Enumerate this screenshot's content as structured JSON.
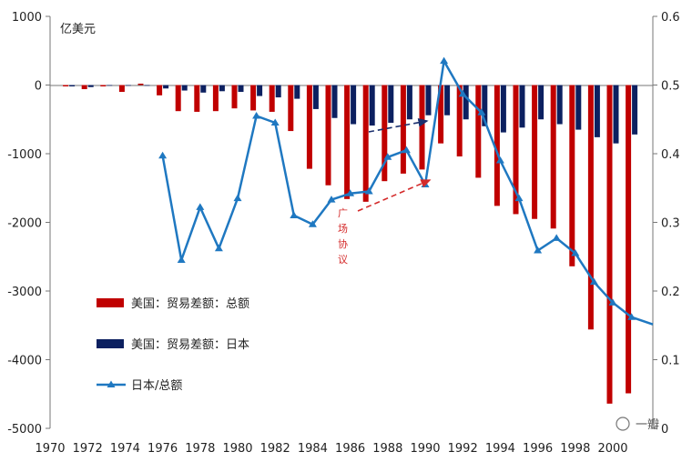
{
  "chart_data": {
    "type": "bar",
    "unit_label": "亿美元",
    "left_axis": {
      "ylim": [
        -5000,
        1000
      ],
      "ticks": [
        "1000",
        "0",
        "-1000",
        "-2000",
        "-3000",
        "-4000",
        "-5000"
      ]
    },
    "right_axis": {
      "ylim": [
        0,
        0.6
      ],
      "ticks": [
        "0.6",
        "0.5",
        "0.4",
        "0.3",
        "0.2",
        "0.1",
        "0"
      ]
    },
    "x_ticks": [
      "1970",
      "1972",
      "1974",
      "1976",
      "1978",
      "1980",
      "1982",
      "1984",
      "1986",
      "1988",
      "1990",
      "1992",
      "1994",
      "1996",
      "1998",
      "2000"
    ],
    "years": [
      1971,
      1972,
      1973,
      1974,
      1975,
      1976,
      1977,
      1978,
      1979,
      1980,
      1981,
      1982,
      1983,
      1984,
      1985,
      1986,
      1987,
      1988,
      1989,
      1990,
      1991,
      1992,
      1993,
      1994,
      1995,
      1996,
      1997,
      1998,
      1999,
      2000,
      2001
    ],
    "series": [
      {
        "name": "美国：贸易差额：总额",
        "color": "#c00000",
        "axis": "left",
        "values": [
          -20,
          -60,
          -20,
          -100,
          20,
          -150,
          -380,
          -390,
          -380,
          -340,
          -370,
          -390,
          -670,
          -1220,
          -1460,
          -1660,
          -1700,
          -1400,
          -1290,
          -1230,
          -850,
          -1040,
          -1350,
          -1760,
          -1880,
          -1950,
          -2090,
          -2640,
          -3560,
          -4640,
          -4490
        ]
      },
      {
        "name": "美国：贸易差额：日本",
        "color": "#0c2060",
        "axis": "left",
        "values": [
          -20,
          -30,
          0,
          -10,
          -10,
          -50,
          -80,
          -110,
          -90,
          -100,
          -160,
          -180,
          -200,
          -350,
          -480,
          -570,
          -590,
          -550,
          -500,
          -440,
          -440,
          -500,
          -600,
          -690,
          -620,
          -500,
          -570,
          -650,
          -760,
          -850,
          -720
        ]
      },
      {
        "name": "日本/总额",
        "color": "#1f78c1",
        "axis": "right",
        "x": [
          1976,
          1977,
          1978,
          1979,
          1980,
          1981,
          1982,
          1983,
          1984,
          1985,
          1986,
          1987,
          1988,
          1989,
          1990,
          1991,
          1992,
          1993,
          1994,
          1995,
          1996,
          1997,
          1998,
          1999,
          2000,
          2001
        ],
        "values": [
          0.397,
          0.245,
          0.322,
          0.262,
          0.335,
          0.455,
          0.445,
          0.31,
          0.297,
          0.333,
          0.342,
          0.345,
          0.395,
          0.405,
          0.355,
          0.535,
          0.487,
          0.46,
          0.39,
          0.335,
          0.259,
          0.277,
          0.255,
          0.213,
          0.183,
          0.162
        ]
      }
    ],
    "annotations": {
      "plaza_accord": [
        "广",
        "场",
        "协",
        "议"
      ]
    },
    "watermark": "一瓣"
  }
}
